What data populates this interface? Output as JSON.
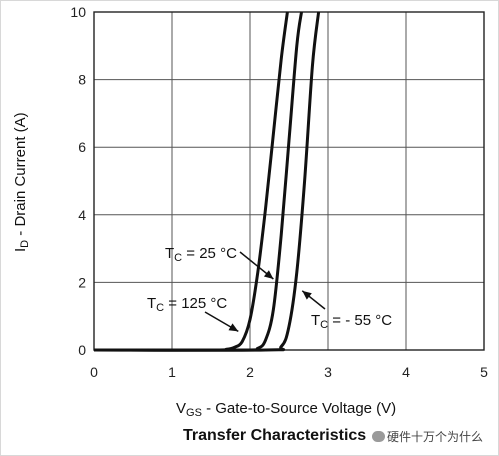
{
  "chart_data": {
    "type": "line",
    "title": "Transfer Characteristics",
    "xlabel": {
      "main": "V",
      "sub": "GS",
      "rest": " - Gate-to-Source Voltage (V)"
    },
    "ylabel": {
      "main": "I",
      "sub": "D",
      "rest": " - Drain Current (A)"
    },
    "xlim": [
      0,
      5
    ],
    "ylim": [
      0,
      10
    ],
    "xticks": [
      "0",
      "1",
      "2",
      "3",
      "4",
      "5"
    ],
    "yticks": [
      "0",
      "2",
      "4",
      "6",
      "8",
      "10"
    ],
    "grid": true,
    "series": [
      {
        "name": {
          "main": "T",
          "sub": "C",
          "rest": " = 125 °C"
        },
        "x": [
          0,
          1.5,
          1.7,
          1.8,
          1.9,
          2.0,
          2.1,
          2.2,
          2.3,
          2.4,
          2.48
        ],
        "y": [
          0,
          0,
          0.02,
          0.08,
          0.25,
          0.9,
          2.3,
          4.2,
          6.4,
          8.6,
          10
        ]
      },
      {
        "name": {
          "main": "T",
          "sub": "C",
          "rest": " = 25 °C"
        },
        "x": [
          0,
          1.9,
          2.1,
          2.2,
          2.3,
          2.4,
          2.5,
          2.6,
          2.66
        ],
        "y": [
          0,
          0,
          0.05,
          0.3,
          1.2,
          3.4,
          6.2,
          9.0,
          10
        ]
      },
      {
        "name": {
          "main": "T",
          "sub": "C",
          "rest": " = - 55 °C"
        },
        "x": [
          0,
          2.2,
          2.4,
          2.5,
          2.6,
          2.7,
          2.8,
          2.88
        ],
        "y": [
          0,
          0,
          0.1,
          0.7,
          2.3,
          5.0,
          8.4,
          10
        ]
      }
    ]
  },
  "watermark": "硬件十万个为什么"
}
